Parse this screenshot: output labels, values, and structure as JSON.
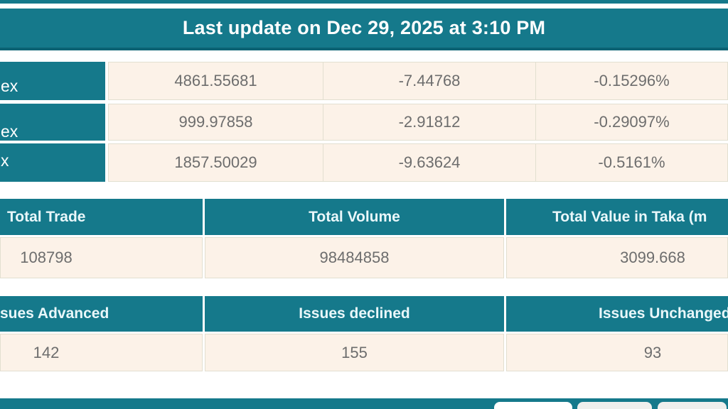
{
  "header": {
    "last_update": "Last update on Dec 29, 2025 at 3:10 PM"
  },
  "colors": {
    "accent_teal": "#15798b",
    "accent_teal_dark": "#0b6273",
    "cell_beige": "#fcf2e8",
    "value_text": "#6d6d6d",
    "header_text": "#ffffff"
  },
  "index_table": {
    "rows": [
      {
        "label_fragment": "ex",
        "value": "4861.55681",
        "change": "-7.44768",
        "change_pct": "-0.15296%"
      },
      {
        "label_fragment": "ex",
        "value": "999.97858",
        "change": "-2.91812",
        "change_pct": "-0.29097%"
      },
      {
        "label_fragment": "x",
        "value": "1857.50029",
        "change": "-9.63624",
        "change_pct": "-0.5161%"
      }
    ]
  },
  "totals_table": {
    "headers": {
      "trade": "Total Trade",
      "volume": "Total Volume",
      "value": "Total Value in Taka (m"
    },
    "values": {
      "trade": "108798",
      "volume": "98484858",
      "value": "3099.668"
    }
  },
  "issues_table": {
    "headers": {
      "advanced": "sues Advanced",
      "declined": "Issues declined",
      "unchanged": "Issues Unchanged"
    },
    "values": {
      "advanced": "142",
      "declined": "155",
      "unchanged": "93"
    }
  }
}
